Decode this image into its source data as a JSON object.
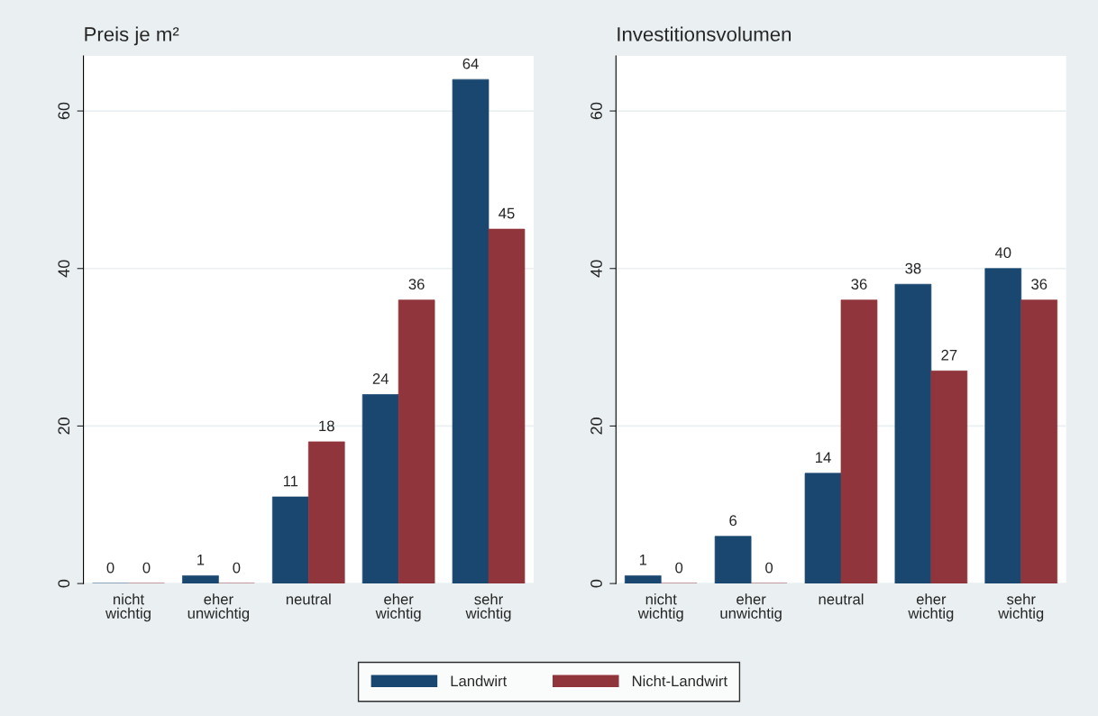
{
  "chart_data": [
    {
      "type": "bar",
      "title": "Preis je m²",
      "categories": [
        "nicht\nwichtig",
        "eher\nunwichtig",
        "neutral",
        "eher\nwichtig",
        "sehr\nwichtig"
      ],
      "series": [
        {
          "name": "Landwirt",
          "color": "#1a476f",
          "values": [
            0,
            1,
            11,
            24,
            64
          ]
        },
        {
          "name": "Nicht-Landwirt",
          "color": "#90353b",
          "values": [
            0,
            0,
            18,
            36,
            45
          ]
        }
      ],
      "ylim": [
        0,
        67
      ],
      "yticks": [
        0,
        20,
        40,
        60
      ],
      "grid": "y",
      "data_labels": true,
      "legend": "bottom"
    },
    {
      "type": "bar",
      "title": "Investitionsvolumen",
      "categories": [
        "nicht\nwichtig",
        "eher\nunwichtig",
        "neutral",
        "eher\nwichtig",
        "sehr\nwichtig"
      ],
      "series": [
        {
          "color": "#1a476f",
          "values": [
            1,
            6,
            14,
            38,
            40
          ]
        },
        {
          "color": "#90353b",
          "values": [
            0,
            0,
            36,
            27,
            36
          ]
        }
      ],
      "ylim": [
        0,
        67
      ],
      "yticks": [
        0,
        20,
        40,
        60
      ],
      "grid": "y",
      "data_labels": true
    }
  ]
}
